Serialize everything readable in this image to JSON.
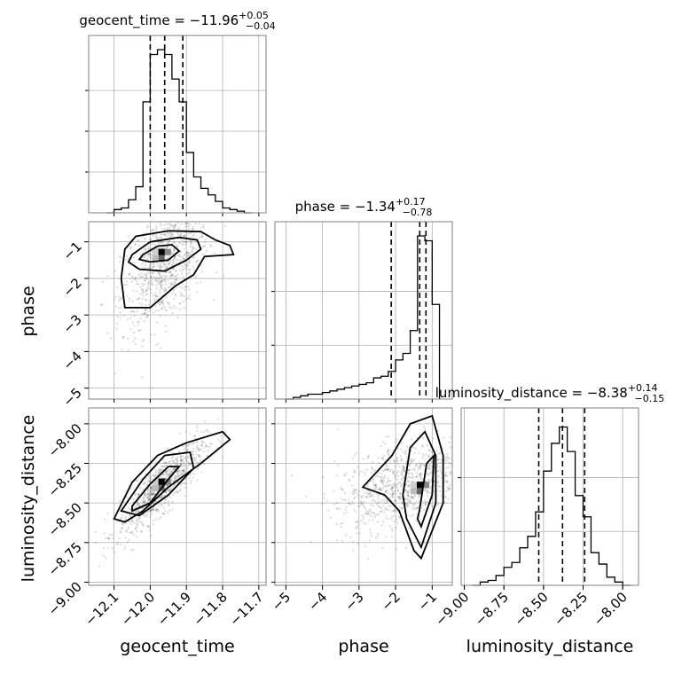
{
  "chart_data": {
    "type": "corner",
    "parameters": [
      "geocent_time",
      "phase",
      "luminosity_distance"
    ],
    "titles": [
      {
        "param": "geocent_time",
        "prefix": "geocent_time = ",
        "value": "−11.96",
        "plus": "+0.05",
        "minus": "−0.04"
      },
      {
        "param": "phase",
        "prefix": "phase = ",
        "value": "−1.34",
        "plus": "+0.17",
        "minus": "−0.78"
      },
      {
        "param": "luminosity_distance",
        "prefix": "luminosity_distance = ",
        "value": "−8.38",
        "plus": "+0.14",
        "minus": "−0.15"
      }
    ],
    "ranges": {
      "geocent_time": [
        -12.17,
        -11.68
      ],
      "phase": [
        -5.3,
        -0.45
      ],
      "luminosity_distance": [
        -9.02,
        -7.9
      ]
    },
    "ticks": {
      "geocent_time": {
        "values": [
          -12.1,
          -12.0,
          -11.9,
          -11.8,
          -11.7
        ],
        "labels": [
          "−12.1",
          "−12.0",
          "−11.9",
          "−11.8",
          "−11.7"
        ]
      },
      "phase": {
        "values": [
          -5,
          -4,
          -3,
          -2,
          -1
        ],
        "labels": [
          "−5",
          "−4",
          "−3",
          "−2",
          "−1"
        ]
      },
      "luminosity_distance": {
        "values": [
          -9.0,
          -8.75,
          -8.5,
          -8.25,
          -8.0
        ],
        "labels": [
          "−9.00",
          "−8.75",
          "−8.50",
          "−8.25",
          "−8.00"
        ]
      }
    },
    "hist_ticks": {
      "geocent_time": [
        0.25,
        0.5,
        0.75
      ],
      "phase": [
        0.33,
        0.66
      ],
      "luminosity_distance": [
        0.33,
        0.66
      ]
    },
    "histograms": {
      "geocent_time": {
        "edges": [
          -12.12,
          -12.1,
          -12.08,
          -12.06,
          -12.04,
          -12.02,
          -12.0,
          -11.98,
          -11.96,
          -11.94,
          -11.92,
          -11.9,
          -11.88,
          -11.86,
          -11.84,
          -11.82,
          -11.8,
          -11.78,
          -11.76,
          -11.74,
          -11.72
        ],
        "counts": [
          0.0,
          0.02,
          0.03,
          0.08,
          0.16,
          0.68,
          0.97,
          1.0,
          0.97,
          0.82,
          0.68,
          0.37,
          0.22,
          0.15,
          0.11,
          0.07,
          0.03,
          0.02,
          0.01,
          0.0
        ]
      },
      "phase": {
        "edges": [
          -5.0,
          -4.8,
          -4.6,
          -4.4,
          -4.2,
          -4.0,
          -3.8,
          -3.6,
          -3.4,
          -3.2,
          -3.0,
          -2.8,
          -2.6,
          -2.4,
          -2.2,
          -2.0,
          -1.8,
          -1.6,
          -1.4,
          -1.2,
          -1.0,
          -0.8
        ],
        "counts": [
          0.0,
          0.01,
          0.02,
          0.03,
          0.03,
          0.04,
          0.05,
          0.06,
          0.07,
          0.08,
          0.09,
          0.1,
          0.13,
          0.14,
          0.17,
          0.24,
          0.28,
          0.42,
          1.0,
          0.97,
          0.58,
          0.0
        ]
      },
      "luminosity_distance": {
        "edges": [
          -8.95,
          -8.9,
          -8.85,
          -8.8,
          -8.75,
          -8.7,
          -8.65,
          -8.6,
          -8.55,
          -8.5,
          -8.45,
          -8.4,
          -8.35,
          -8.3,
          -8.25,
          -8.2,
          -8.15,
          -8.1,
          -8.05,
          -8.0,
          -7.95
        ],
        "counts": [
          0.0,
          0.02,
          0.03,
          0.06,
          0.11,
          0.14,
          0.23,
          0.3,
          0.45,
          0.7,
          0.87,
          0.97,
          0.82,
          0.55,
          0.42,
          0.2,
          0.13,
          0.05,
          0.02,
          0.0
        ]
      }
    },
    "quantiles": {
      "geocent_time": [
        -12.0,
        -11.96,
        -11.91
      ],
      "phase": [
        -2.12,
        -1.34,
        -1.17
      ],
      "luminosity_distance": [
        -8.53,
        -8.38,
        -8.24
      ]
    },
    "contours": {
      "phase_vs_geocent_time": [
        {
          "level": "1sigma",
          "x": [
            -12.02,
            -11.98,
            -11.94,
            -11.92,
            -11.95,
            -12.0,
            -12.03,
            -12.02
          ],
          "y": [
            -1.35,
            -1.12,
            -1.08,
            -1.25,
            -1.5,
            -1.55,
            -1.48,
            -1.35
          ]
        },
        {
          "level": "2sigma",
          "x": [
            -12.05,
            -12.0,
            -11.92,
            -11.87,
            -11.86,
            -11.9,
            -11.96,
            -12.03,
            -12.06,
            -12.05
          ],
          "y": [
            -1.35,
            -1.0,
            -0.88,
            -0.95,
            -1.2,
            -1.5,
            -1.8,
            -1.75,
            -1.55,
            -1.35
          ]
        },
        {
          "level": "3sigma",
          "x": [
            -12.07,
            -12.04,
            -11.95,
            -11.86,
            -11.82,
            -11.78,
            -11.77,
            -11.85,
            -11.88,
            -11.93,
            -12.0,
            -12.07,
            -12.08,
            -12.07
          ],
          "y": [
            -1.2,
            -0.85,
            -0.7,
            -0.72,
            -0.95,
            -1.1,
            -1.35,
            -1.4,
            -1.9,
            -2.2,
            -2.8,
            -2.8,
            -2.0,
            -1.2
          ]
        }
      ],
      "luminosity_distance_vs_geocent_time": [
        {
          "level": "1sigma",
          "x": [
            -12.05,
            -12.0,
            -11.95,
            -11.92,
            -11.95,
            -12.0,
            -12.05
          ],
          "y": [
            -8.52,
            -8.38,
            -8.27,
            -8.27,
            -8.35,
            -8.5,
            -8.55
          ]
        },
        {
          "level": "2sigma",
          "x": [
            -12.08,
            -12.02,
            -11.96,
            -11.89,
            -11.88,
            -11.95,
            -12.03,
            -12.08
          ],
          "y": [
            -8.55,
            -8.35,
            -8.2,
            -8.18,
            -8.28,
            -8.45,
            -8.58,
            -8.55
          ]
        },
        {
          "level": "3sigma",
          "x": [
            -12.1,
            -12.05,
            -11.98,
            -11.9,
            -11.8,
            -11.78,
            -11.86,
            -11.95,
            -12.02,
            -12.07,
            -12.1
          ],
          "y": [
            -8.6,
            -8.37,
            -8.2,
            -8.12,
            -8.05,
            -8.1,
            -8.25,
            -8.4,
            -8.55,
            -8.62,
            -8.6
          ]
        }
      ],
      "luminosity_distance_vs_phase": [
        {
          "level": "1sigma",
          "x": [
            -1.35,
            -1.15,
            -0.95,
            -1.0,
            -1.3,
            -1.4,
            -1.35
          ],
          "y": [
            -8.55,
            -8.25,
            -8.2,
            -8.45,
            -8.65,
            -8.6,
            -8.55
          ]
        },
        {
          "level": "2sigma",
          "x": [
            -1.8,
            -1.6,
            -1.2,
            -0.9,
            -0.9,
            -1.3,
            -1.7,
            -1.8
          ],
          "y": [
            -8.45,
            -8.15,
            -8.05,
            -8.2,
            -8.5,
            -8.78,
            -8.6,
            -8.45
          ]
        },
        {
          "level": "3sigma",
          "x": [
            -2.9,
            -2.1,
            -1.6,
            -1.0,
            -0.7,
            -0.7,
            -1.3,
            -1.5,
            -1.9,
            -2.3,
            -2.9
          ],
          "y": [
            -8.4,
            -8.2,
            -8.0,
            -7.95,
            -8.2,
            -8.5,
            -8.85,
            -8.8,
            -8.55,
            -8.45,
            -8.4
          ]
        }
      ]
    },
    "density_peaks": {
      "phase_vs_geocent_time": {
        "x": -11.96,
        "y": -1.34
      },
      "luminosity_distance_vs_geocent_time": {
        "x": -11.96,
        "y": -8.38
      },
      "luminosity_distance_vs_phase": {
        "x": -1.25,
        "y": -8.4
      }
    },
    "xlabels": [
      "geocent_time",
      "phase",
      "luminosity_distance"
    ],
    "ylabels": [
      "phase",
      "luminosity_distance"
    ]
  }
}
